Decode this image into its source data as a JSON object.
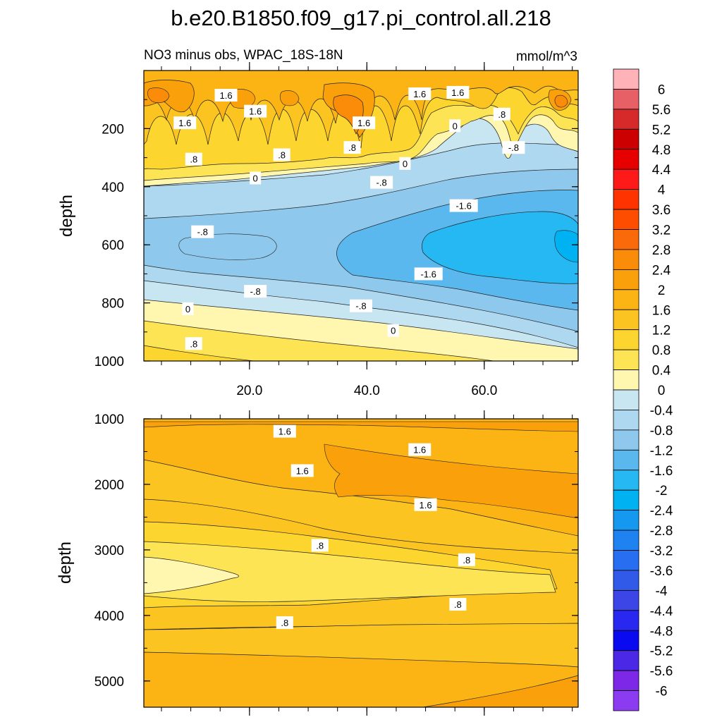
{
  "chart_data": {
    "type": "contour",
    "title": "b.e20.B1850.f09_g17.pi_control.all.218",
    "subtitle_left": "NO3 minus obs, WPAC_18S-18N",
    "units": "mmol/m^3",
    "xlim": [
      2,
      76
    ],
    "x_ticks": [
      20,
      40,
      60
    ],
    "x_tick_labels": [
      "20.0",
      "40.0",
      "60.0"
    ],
    "panels": [
      {
        "name": "upper",
        "ylabel": "depth",
        "ylim": [
          0,
          1000
        ],
        "y_ticks": [
          200,
          400,
          600,
          800,
          1000
        ],
        "y_tick_labels": [
          "200",
          "400",
          "600",
          "800",
          "1000"
        ],
        "contour_labels": [
          {
            "text": "1.6",
            "x": 16,
            "y": 85
          },
          {
            "text": "1.6",
            "x": 9,
            "y": 180
          },
          {
            "text": "1.6",
            "x": 21,
            "y": 140
          },
          {
            "text": "1.6",
            "x": 39.5,
            "y": 180
          },
          {
            "text": "1.6",
            "x": 49,
            "y": 80
          },
          {
            "text": "1.6",
            "x": 55.5,
            "y": 75
          },
          {
            "text": ".8",
            "x": 10.5,
            "y": 305
          },
          {
            "text": ".8",
            "x": 25.5,
            "y": 290
          },
          {
            "text": ".8",
            "x": 37.5,
            "y": 265
          },
          {
            "text": ".8",
            "x": 63,
            "y": 150
          },
          {
            "text": "-.8",
            "x": 65,
            "y": 265
          },
          {
            "text": "0",
            "x": 55,
            "y": 190
          },
          {
            "text": "0",
            "x": 46.5,
            "y": 320
          },
          {
            "text": "0",
            "x": 21,
            "y": 370
          },
          {
            "text": "-.8",
            "x": 42.5,
            "y": 385
          },
          {
            "text": "-1.6",
            "x": 56.5,
            "y": 465
          },
          {
            "text": "-.8",
            "x": 12,
            "y": 555
          },
          {
            "text": "-1.6",
            "x": 50.5,
            "y": 700
          },
          {
            "text": "-.8",
            "x": 21,
            "y": 760
          },
          {
            "text": "-.8",
            "x": 39,
            "y": 810
          },
          {
            "text": "0",
            "x": 9.5,
            "y": 820
          },
          {
            "text": "0",
            "x": 44.5,
            "y": 895
          },
          {
            "text": ".8",
            "x": 10.5,
            "y": 940
          }
        ]
      },
      {
        "name": "lower",
        "ylabel": "depth",
        "ylim": [
          1000,
          5400
        ],
        "y_ticks": [
          1000,
          2000,
          3000,
          4000,
          5000
        ],
        "y_tick_labels": [
          "1000",
          "2000",
          "3000",
          "4000",
          "5000"
        ],
        "contour_labels": [
          {
            "text": "1.6",
            "x": 26,
            "y": 1190
          },
          {
            "text": "1.6",
            "x": 49,
            "y": 1470
          },
          {
            "text": "1.6",
            "x": 29,
            "y": 1790
          },
          {
            "text": "1.6",
            "x": 50,
            "y": 2310
          },
          {
            "text": ".8",
            "x": 32,
            "y": 2930
          },
          {
            "text": ".8",
            "x": 57,
            "y": 3150
          },
          {
            "text": ".8",
            "x": 55.5,
            "y": 3830
          },
          {
            "text": ".8",
            "x": 26,
            "y": 4110
          }
        ]
      }
    ],
    "colorbar": {
      "levels": [
        "6",
        "5.6",
        "5.2",
        "4.8",
        "4.4",
        "4",
        "3.6",
        "3.2",
        "2.8",
        "2.4",
        "2",
        "1.6",
        "1.2",
        "0.8",
        "0.4",
        "0",
        "-0.4",
        "-0.8",
        "-1.2",
        "-1.6",
        "-2",
        "-2.4",
        "-2.8",
        "-3.2",
        "-3.6",
        "-4",
        "-4.4",
        "-4.8",
        "-5.2",
        "-5.6",
        "-6"
      ],
      "colors": [
        "#ffb3b8",
        "#e66065",
        "#d62a2a",
        "#cc0000",
        "#e60000",
        "#ff1a1a",
        "#ff3300",
        "#ff4d00",
        "#fa6a0a",
        "#fa8c0a",
        "#faa00a",
        "#fbb414",
        "#fcc420",
        "#fcd52e",
        "#fde455",
        "#fff6b0",
        "#c8e6f2",
        "#aed8ef",
        "#8ec8ec",
        "#5ab8ee",
        "#26b8f2",
        "#00b2f2",
        "#1498f0",
        "#1e82f0",
        "#286ef0",
        "#325ae8",
        "#3c46e6",
        "#2828f0",
        "#0a0af0",
        "#4b28e6",
        "#7d28e6",
        "#8c3cf0"
      ]
    }
  }
}
